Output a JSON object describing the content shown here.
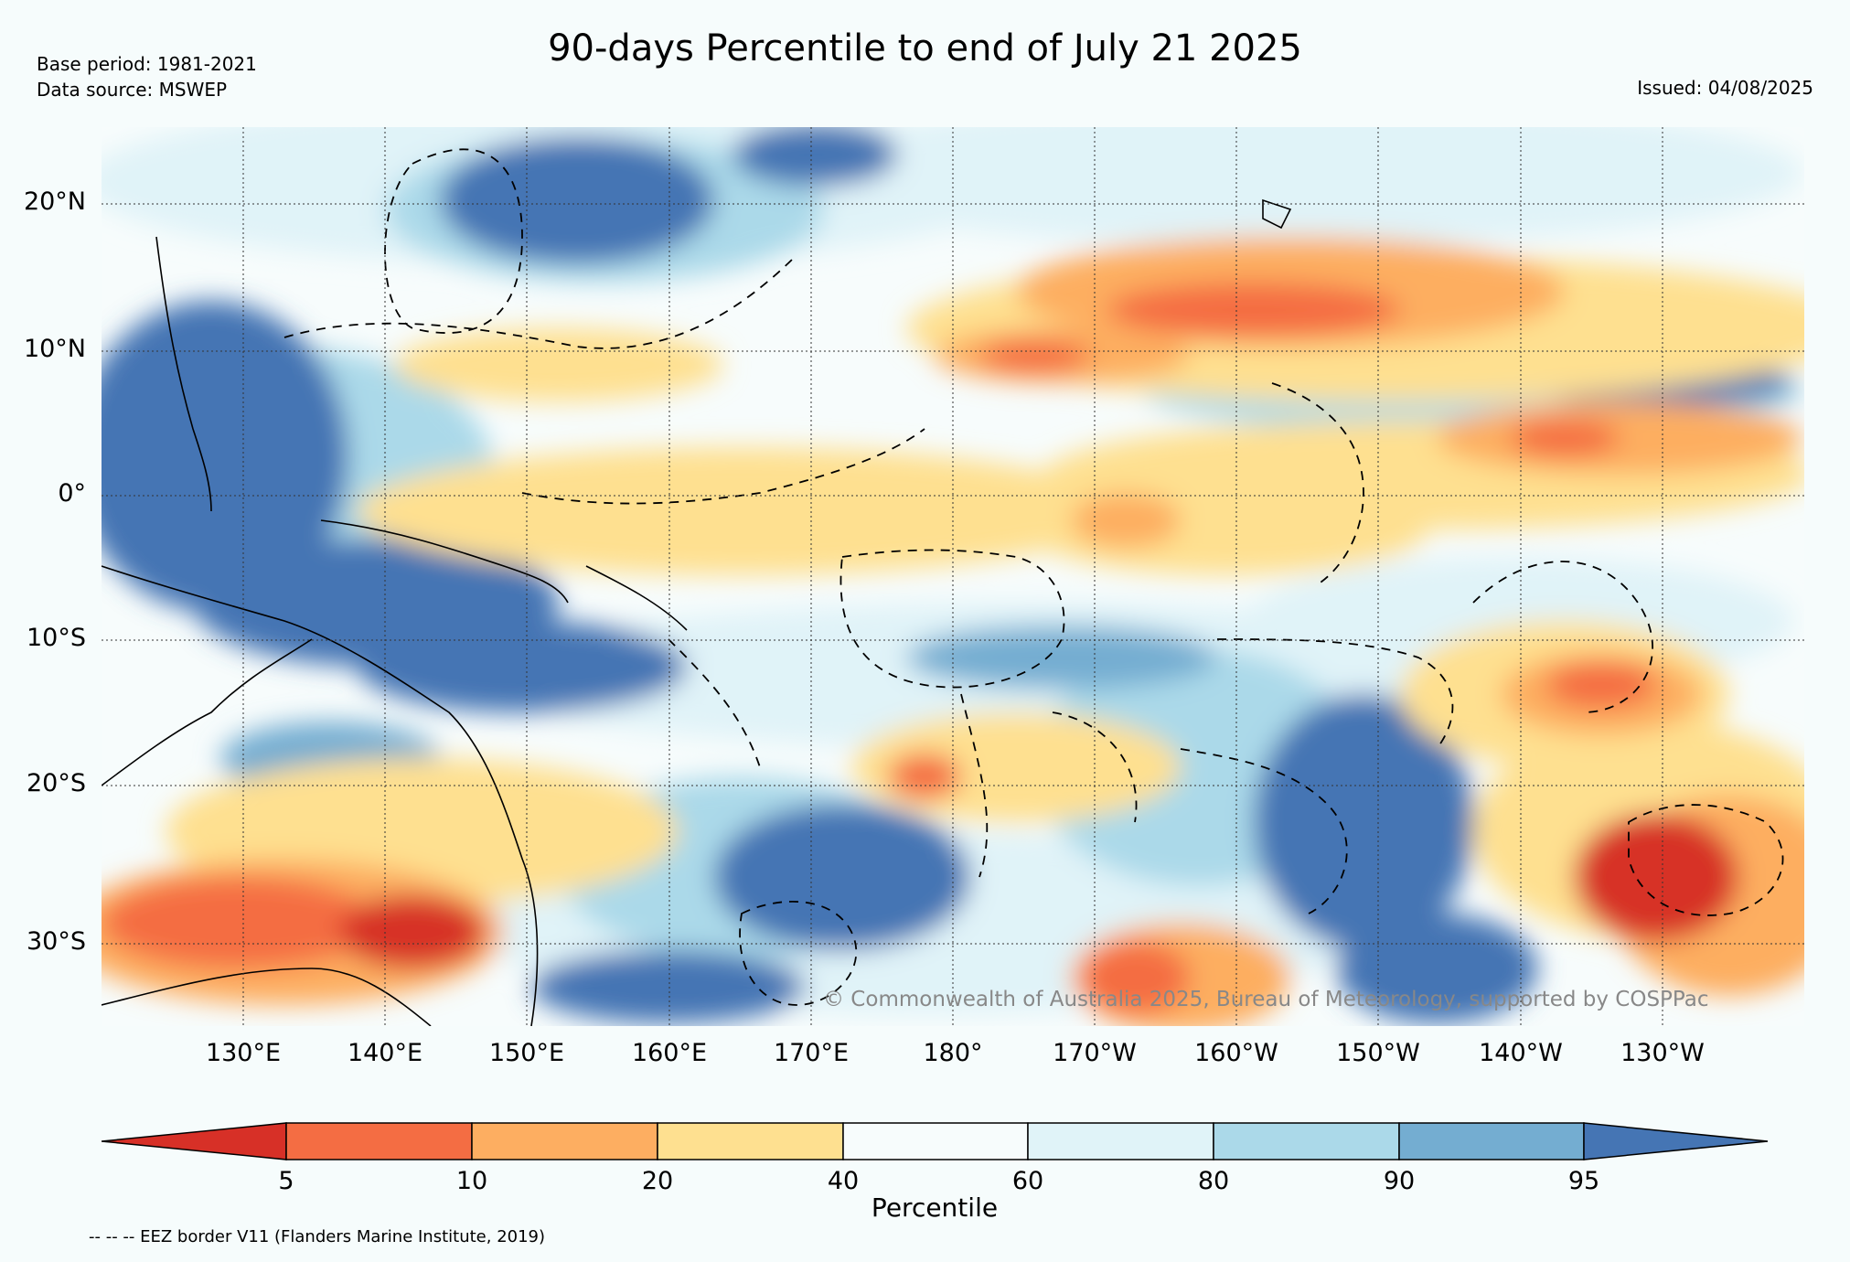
{
  "header": {
    "title": "90-days Percentile to end of July 21 2025",
    "base_period": "Base period: 1981-2021",
    "data_source": "Data source: MSWEP",
    "issued": "Issued: 04/08/2025"
  },
  "axes": {
    "lat_labels": [
      "20°N",
      "10°N",
      "0°",
      "10°S",
      "20°S",
      "30°S"
    ],
    "lon_labels": [
      "130°E",
      "140°E",
      "150°E",
      "160°E",
      "170°E",
      "180°",
      "170°W",
      "160°W",
      "150°W",
      "140°W",
      "130°W"
    ]
  },
  "colorbar": {
    "title": "Percentile",
    "ticks": [
      "5",
      "10",
      "20",
      "40",
      "60",
      "80",
      "90",
      "95"
    ],
    "colors": [
      "#d73027",
      "#f46d43",
      "#fdae61",
      "#fee090",
      "#f7fcfc",
      "#e0f3f8",
      "#abd9e9",
      "#74add1",
      "#4575b4"
    ]
  },
  "footer": {
    "eez_note": "-- -- -- EEZ border V11 (Flanders Marine Institute, 2019)",
    "copyright": "© Commonwealth of Australia 2025, Bureau of Meteorology, supported by COSPPac"
  }
}
